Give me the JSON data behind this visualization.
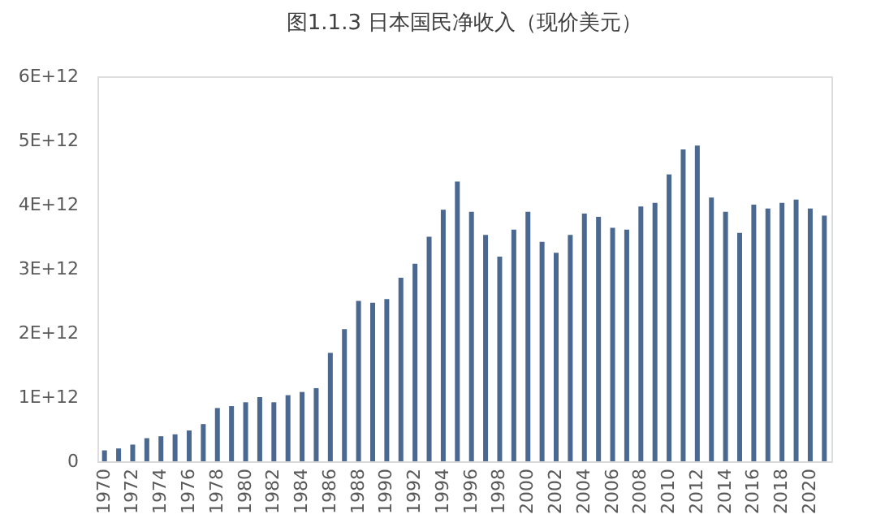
{
  "chart_data": {
    "type": "bar",
    "title": "图1.1.3 日本国民净收入（现价美元）",
    "categories": [
      "1970",
      null,
      "1972",
      null,
      "1974",
      null,
      "1976",
      null,
      "1978",
      null,
      "1980",
      null,
      "1982",
      null,
      "1984",
      null,
      "1986",
      null,
      "1988",
      null,
      "1990",
      null,
      "1992",
      null,
      "1994",
      null,
      "1996",
      null,
      "1998",
      null,
      "2000",
      null,
      "2002",
      null,
      "2004",
      null,
      "2006",
      null,
      "2008",
      null,
      "2010",
      null,
      "2012",
      null,
      "2014",
      null,
      "2016",
      null,
      "2018",
      null,
      "2020",
      null
    ],
    "values": [
      170000000000.0,
      200000000000.0,
      260000000000.0,
      360000000000.0,
      390000000000.0,
      420000000000.0,
      480000000000.0,
      580000000000.0,
      830000000000.0,
      860000000000.0,
      920000000000.0,
      1000000000000.0,
      920000000000.0,
      1030000000000.0,
      1080000000000.0,
      1140000000000.0,
      1690000000000.0,
      2060000000000.0,
      2500000000000.0,
      2470000000000.0,
      2530000000000.0,
      2860000000000.0,
      3080000000000.0,
      3500000000000.0,
      3920000000000.0,
      4360000000000.0,
      3890000000000.0,
      3530000000000.0,
      3190000000000.0,
      3610000000000.0,
      3890000000000.0,
      3420000000000.0,
      3250000000000.0,
      3530000000000.0,
      3860000000000.0,
      3810000000000.0,
      3640000000000.0,
      3610000000000.0,
      3970000000000.0,
      4030000000000.0,
      4470000000000.0,
      4860000000000.0,
      4920000000000.0,
      4110000000000.0,
      3890000000000.0,
      3560000000000.0,
      4000000000000.0,
      3940000000000.0,
      4030000000000.0,
      4080000000000.0,
      3940000000000.0,
      3830000000000.0
    ],
    "color": "#4a6890",
    "ylim": [
      0,
      6000000000000.0
    ],
    "yticks": [
      0,
      {
        "value": 1000000000000.0,
        "label": "1E+12"
      },
      {
        "value": 2000000000000.0,
        "label": "2E+12"
      },
      {
        "value": 3000000000000.0,
        "label": "3E+12"
      },
      {
        "value": 4000000000000.0,
        "label": "4E+12"
      },
      {
        "value": 5000000000000.0,
        "label": "5E+12"
      },
      {
        "value": 6000000000000.0,
        "label": "6E+12"
      }
    ],
    "grid": false
  }
}
